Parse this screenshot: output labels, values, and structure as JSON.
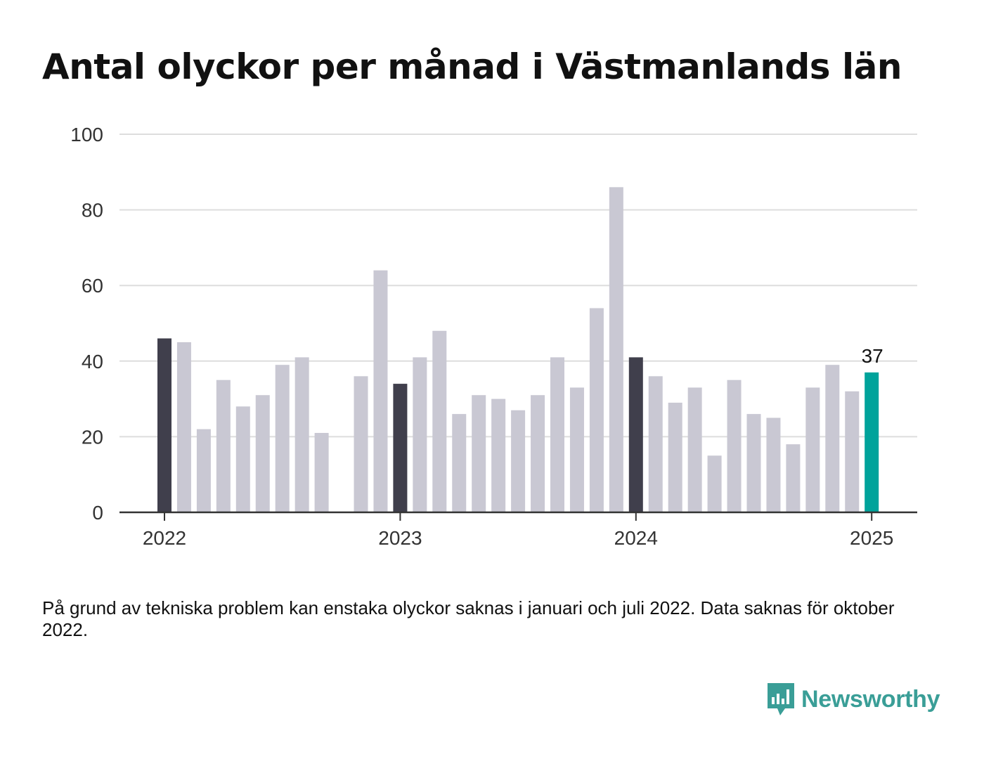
{
  "title": "Antal olyckor per månad i Västmanlands län",
  "footnote": "På grund av tekniska problem kan enstaka olyckor saknas i januari och juli 2022. Data saknas för oktober 2022.",
  "logo": {
    "text": "Newsworthy",
    "icon": "bar-chart-icon"
  },
  "colors": {
    "bar": "#c9c8d3",
    "january": "#403f4c",
    "latest": "#00a39b",
    "grid": "#dddddd",
    "axis": "#333333",
    "logo": "#3a9e97"
  },
  "chart_data": {
    "type": "bar",
    "title": "Antal olyckor per månad i Västmanlands län",
    "xlabel": "",
    "ylabel": "",
    "ylim": [
      0,
      100
    ],
    "yticks": [
      0,
      20,
      40,
      60,
      80,
      100
    ],
    "xticks": [
      "2022",
      "2023",
      "2024",
      "2025"
    ],
    "grid": true,
    "highlight_label": "37",
    "categories": [
      "2022-01",
      "2022-02",
      "2022-03",
      "2022-04",
      "2022-05",
      "2022-06",
      "2022-07",
      "2022-08",
      "2022-09",
      "2022-10",
      "2022-11",
      "2022-12",
      "2023-01",
      "2023-02",
      "2023-03",
      "2023-04",
      "2023-05",
      "2023-06",
      "2023-07",
      "2023-08",
      "2023-09",
      "2023-10",
      "2023-11",
      "2023-12",
      "2024-01",
      "2024-02",
      "2024-03",
      "2024-04",
      "2024-05",
      "2024-06",
      "2024-07",
      "2024-08",
      "2024-09",
      "2024-10",
      "2024-11",
      "2024-12",
      "2025-01"
    ],
    "values": [
      46,
      45,
      22,
      35,
      28,
      31,
      39,
      41,
      21,
      null,
      36,
      64,
      34,
      41,
      48,
      26,
      31,
      30,
      27,
      31,
      41,
      33,
      54,
      86,
      41,
      36,
      29,
      33,
      15,
      35,
      26,
      25,
      18,
      33,
      39,
      32,
      37
    ]
  }
}
